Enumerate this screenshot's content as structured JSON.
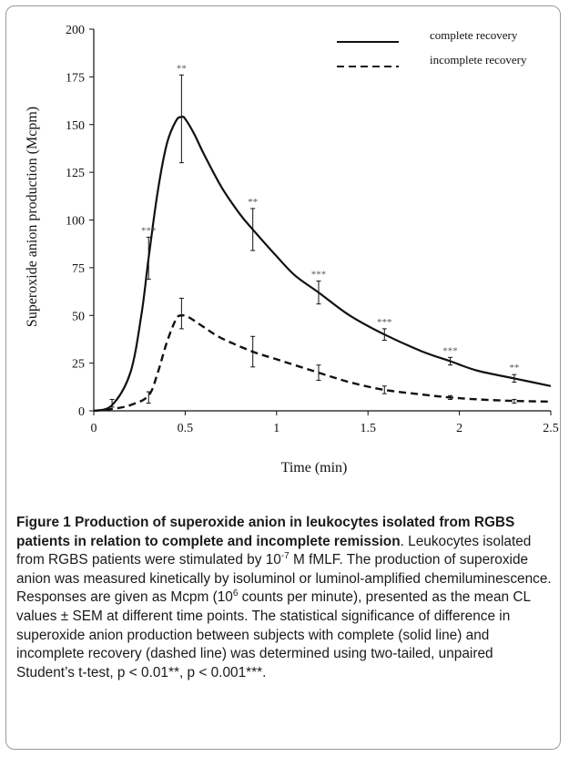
{
  "chart_data": {
    "type": "line",
    "xlabel": "Time (min)",
    "ylabel": "Superoxide anion production (Mcpm)",
    "xlim": [
      0,
      2.5
    ],
    "ylim": [
      0,
      200
    ],
    "xticks": [
      0,
      0.5,
      1,
      1.5,
      2,
      2.5
    ],
    "xtick_labels": [
      "0",
      "0.5",
      "1",
      "1.5",
      "2",
      "2.5"
    ],
    "yticks": [
      0,
      25,
      50,
      75,
      100,
      125,
      150,
      175,
      200
    ],
    "ytick_labels": [
      "0",
      "25",
      "50",
      "75",
      "100",
      "125",
      "150",
      "175",
      "200"
    ],
    "legend_position": "top-right",
    "grid": false,
    "series": [
      {
        "name": "complete recovery",
        "line_style": "solid",
        "color": "#111111",
        "curve": {
          "x": [
            0.0,
            0.1,
            0.2,
            0.26,
            0.3,
            0.35,
            0.4,
            0.45,
            0.48,
            0.5,
            0.55,
            0.6,
            0.7,
            0.8,
            0.87,
            1.0,
            1.1,
            1.23,
            1.4,
            1.59,
            1.8,
            1.95,
            2.1,
            2.3,
            2.5
          ],
          "y": [
            0,
            3,
            20,
            50,
            80,
            115,
            140,
            152,
            154,
            153,
            145,
            135,
            117,
            103,
            95,
            81,
            71,
            62,
            50,
            40,
            31,
            26,
            21,
            17,
            13
          ]
        },
        "points": [
          {
            "x": 0.1,
            "y": 4,
            "err": 2,
            "sig": ""
          },
          {
            "x": 0.3,
            "y": 80,
            "err": 11,
            "sig": "***"
          },
          {
            "x": 0.48,
            "y": 153,
            "err": 23,
            "sig": "**"
          },
          {
            "x": 0.87,
            "y": 95,
            "err": 11,
            "sig": "**"
          },
          {
            "x": 1.23,
            "y": 62,
            "err": 6,
            "sig": "***"
          },
          {
            "x": 1.59,
            "y": 40,
            "err": 3,
            "sig": "***"
          },
          {
            "x": 1.95,
            "y": 26,
            "err": 2,
            "sig": "***"
          },
          {
            "x": 2.3,
            "y": 17,
            "err": 2,
            "sig": "**"
          }
        ]
      },
      {
        "name": "incomplete recovery",
        "line_style": "dashed",
        "color": "#111111",
        "curve": {
          "x": [
            0.0,
            0.1,
            0.2,
            0.3,
            0.35,
            0.4,
            0.45,
            0.48,
            0.52,
            0.6,
            0.7,
            0.87,
            1.0,
            1.23,
            1.4,
            1.59,
            1.8,
            1.95,
            2.1,
            2.3,
            2.5
          ],
          "y": [
            0,
            1,
            3,
            8,
            20,
            36,
            48,
            50,
            49,
            44,
            38,
            31,
            27,
            20,
            15,
            11,
            8.5,
            7,
            6,
            5.2,
            4.8
          ]
        },
        "points": [
          {
            "x": 0.3,
            "y": 7,
            "err": 3
          },
          {
            "x": 0.48,
            "y": 51,
            "err": 8
          },
          {
            "x": 0.87,
            "y": 31,
            "err": 8
          },
          {
            "x": 1.23,
            "y": 20,
            "err": 4
          },
          {
            "x": 1.59,
            "y": 11,
            "err": 2
          },
          {
            "x": 1.95,
            "y": 7,
            "err": 1
          },
          {
            "x": 2.3,
            "y": 5,
            "err": 1
          }
        ]
      }
    ]
  },
  "caption": {
    "title": "Figure 1 Production of superoxide anion in leukocytes isolated from RGBS patients in relation to complete and incomplete remission",
    "s1": ". Leukocytes isolated from RGBS patients were stimulated by 10",
    "sup1": "-7",
    "s2": " M fMLF. The production of superoxide anion was measured kinetically by isoluminol or luminol-amplified chemiluminescence. Responses are given as Mcpm (10",
    "sup2": "6",
    "s3": " counts per minute), presented as the mean CL values ± SEM at different time points. The statistical significance of difference in superoxide anion production between subjects with complete (solid line) and incomplete recovery (dashed line) was determined using two-tailed, unpaired Student’s t-test, p < 0.01**, p < 0.001***."
  }
}
